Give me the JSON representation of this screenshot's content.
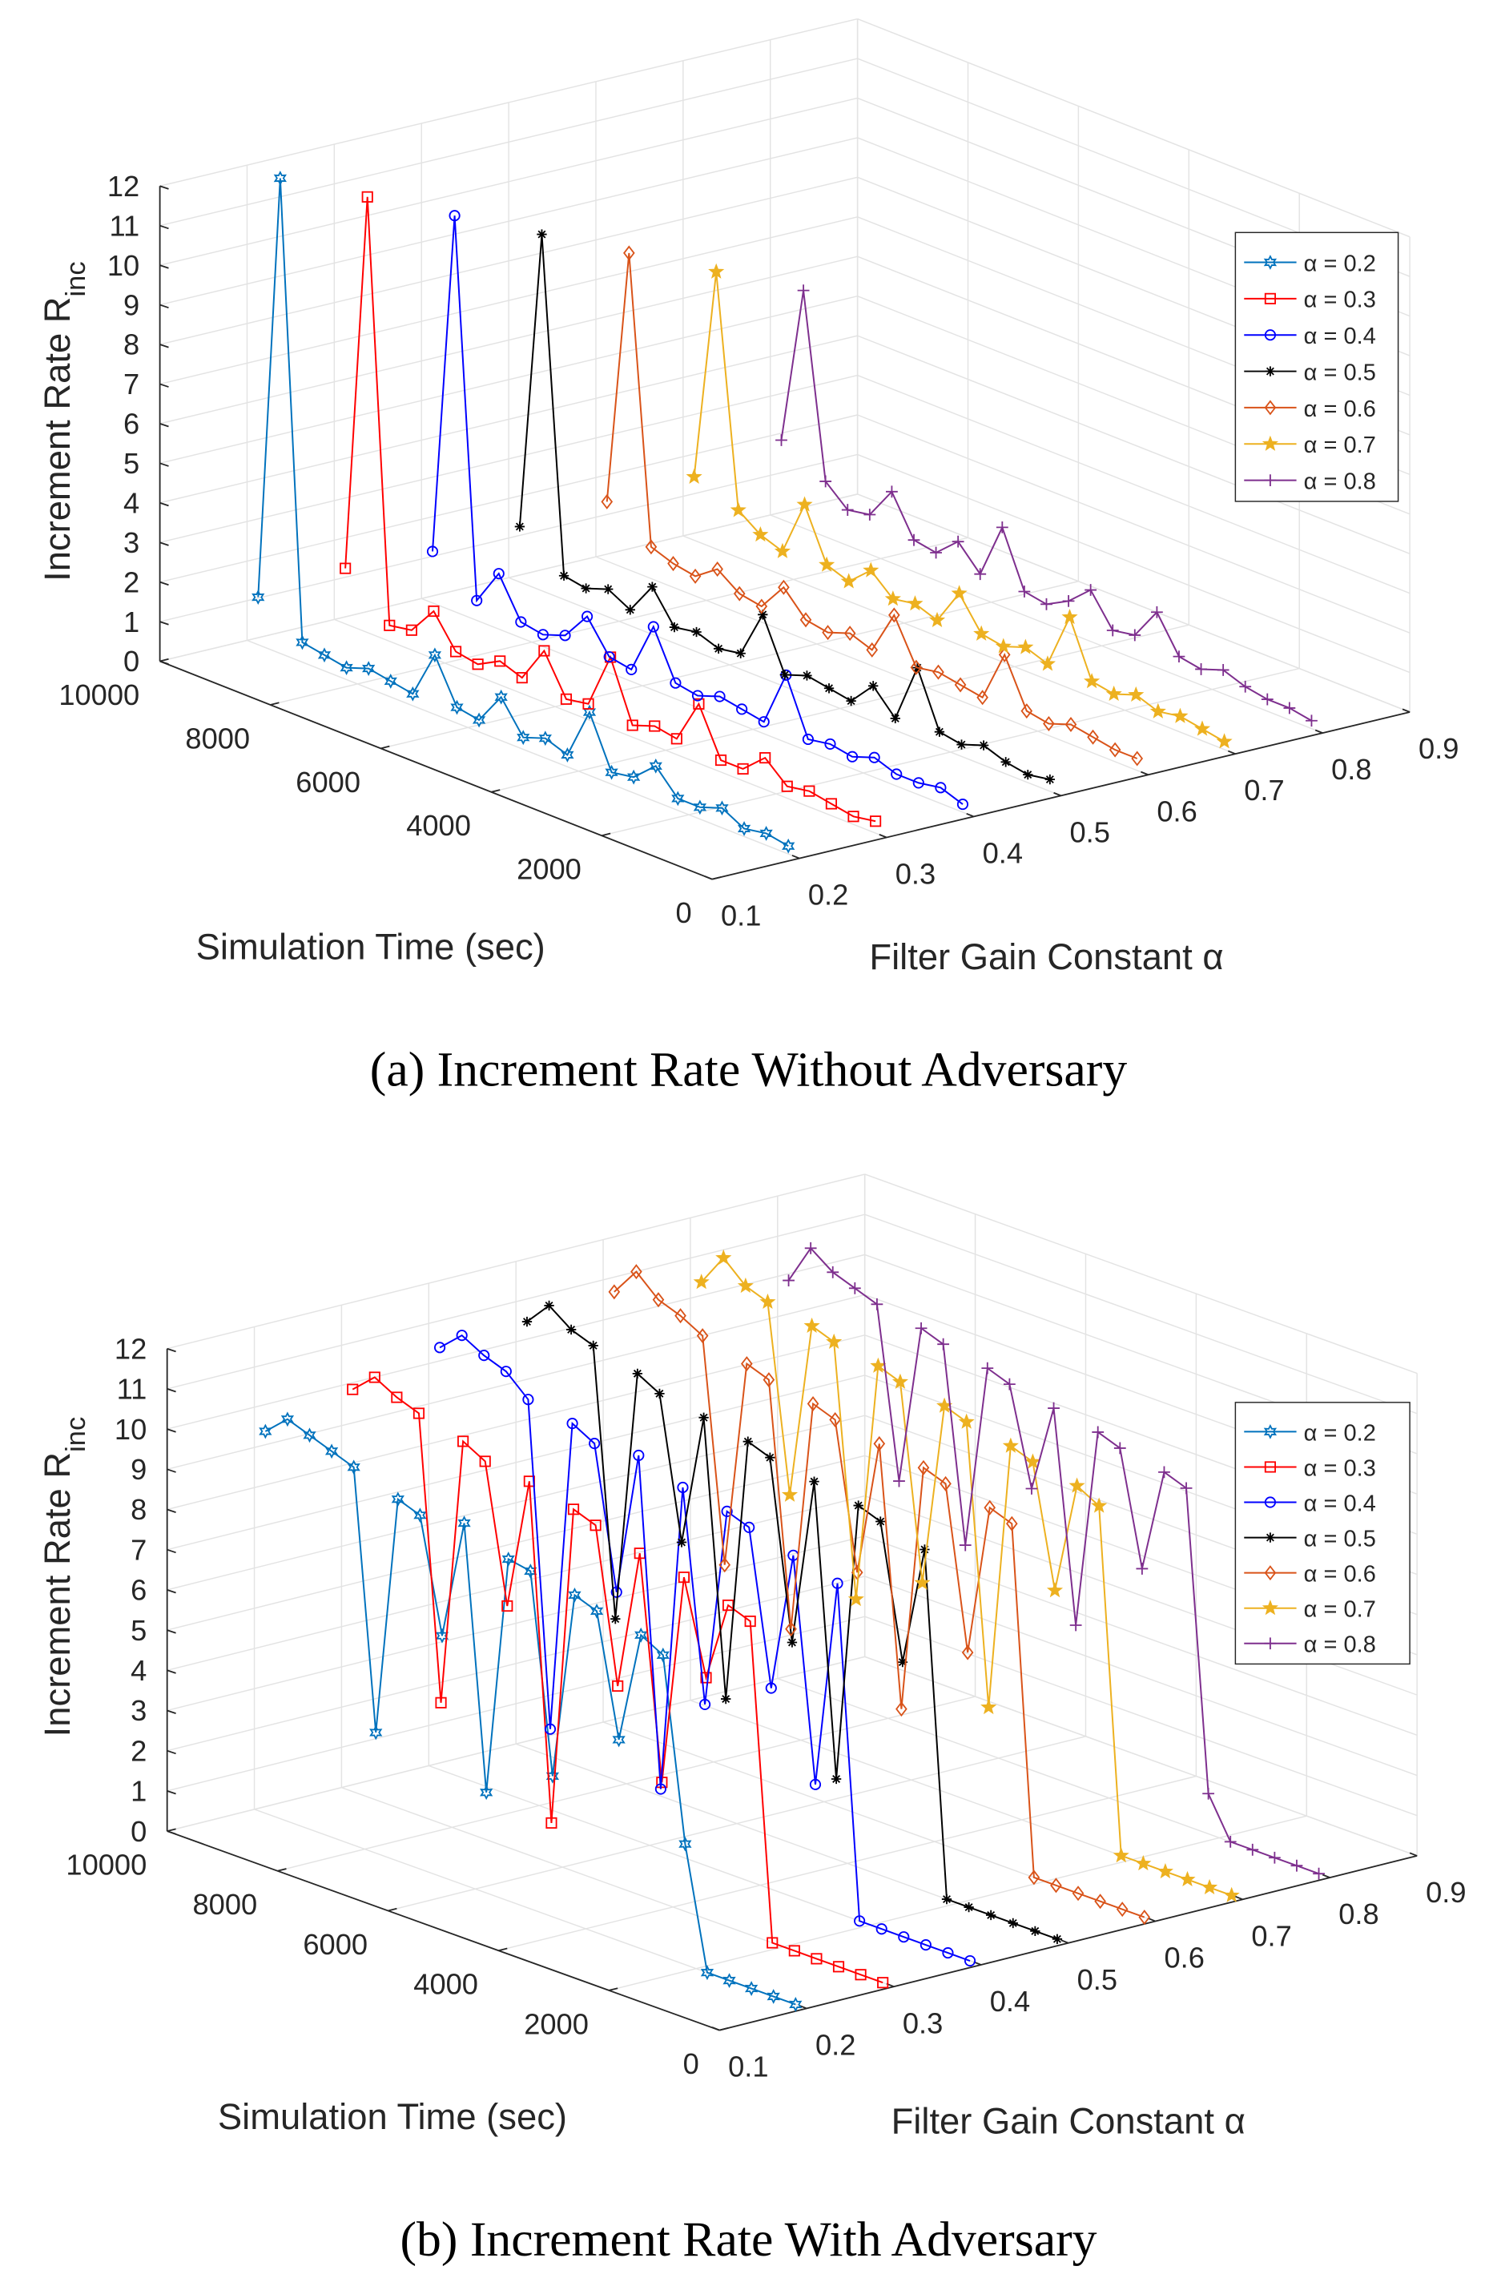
{
  "chart_data": [
    {
      "type": "line3d",
      "caption": "(a) Increment Rate Without Adversary",
      "zlabel": "Increment Rate R",
      "zlabel_sub": "inc",
      "xlabel": "Simulation Time (sec)",
      "alabel": "Filter Gain Constant α",
      "xlim": [
        0,
        10000
      ],
      "xticks": [
        0,
        2000,
        4000,
        6000,
        8000,
        10000
      ],
      "alim": [
        0.1,
        0.9
      ],
      "aticks": [
        0.1,
        0.2,
        0.3,
        0.4,
        0.5,
        0.6,
        0.7,
        0.8,
        0.9
      ],
      "zlim": [
        0,
        12
      ],
      "zticks": [
        0,
        1,
        2,
        3,
        4,
        5,
        6,
        7,
        8,
        9,
        10,
        11,
        12
      ],
      "grid": true,
      "legend": "upper right",
      "x": [
        9800,
        9400,
        9000,
        8600,
        8200,
        7800,
        7400,
        7000,
        6600,
        6200,
        5800,
        5400,
        5000,
        4600,
        4200,
        3800,
        3400,
        3000,
        2600,
        2200,
        1800,
        1400,
        1000,
        600,
        200
      ],
      "series": [
        {
          "name": "α = 0.2",
          "alpha": 0.2,
          "color": "#0072bd",
          "marker": "hexagram",
          "values": [
            1.2,
            12,
            0.5,
            0.4,
            0.3,
            0.5,
            0.4,
            0.3,
            1.5,
            0.4,
            0.3,
            1.1,
            0.3,
            0.5,
            0.3,
            1.6,
            0.3,
            0.4,
            0.9,
            0.3,
            0.3,
            0.5,
            0.2,
            0.3,
            0.2
          ]
        },
        {
          "name": "α = 0.3",
          "alpha": 0.3,
          "color": "#ff0000",
          "marker": "square",
          "values": [
            1.4,
            11,
            0.4,
            0.5,
            1.2,
            0.4,
            0.3,
            0.6,
            0.4,
            1.3,
            0.3,
            0.4,
            1.8,
            0.3,
            0.5,
            0.4,
            1.5,
            0.3,
            0.3,
            0.8,
            0.3,
            0.4,
            0.3,
            0.2,
            0.3
          ]
        },
        {
          "name": "α = 0.4",
          "alpha": 0.4,
          "color": "#0000ff",
          "marker": "circle",
          "values": [
            1.3,
            10,
            0.5,
            1.4,
            0.4,
            0.3,
            0.5,
            1.2,
            0.4,
            0.3,
            1.6,
            0.4,
            0.3,
            0.5,
            0.4,
            0.3,
            1.7,
            0.3,
            0.4,
            0.3,
            0.5,
            0.3,
            0.3,
            0.4,
            0.2
          ]
        },
        {
          "name": "α = 0.5",
          "alpha": 0.5,
          "color": "#000000",
          "marker": "asterisk",
          "values": [
            1.4,
            9,
            0.6,
            0.5,
            0.7,
            0.4,
            1.2,
            0.4,
            0.5,
            0.3,
            0.4,
            1.6,
            0.3,
            0.5,
            0.4,
            0.3,
            0.9,
            0.3,
            1.8,
            0.4,
            0.3,
            0.5,
            0.3,
            0.2,
            0.3
          ]
        },
        {
          "name": "α = 0.6",
          "alpha": 0.6,
          "color": "#d95319",
          "marker": "diamond",
          "values": [
            1.5,
            8,
            0.8,
            0.6,
            0.5,
            0.9,
            0.5,
            0.4,
            1.1,
            0.5,
            0.4,
            0.6,
            0.4,
            1.5,
            0.4,
            0.5,
            0.4,
            0.3,
            1.6,
            0.4,
            0.3,
            0.5,
            0.4,
            0.3,
            0.3
          ]
        },
        {
          "name": "α = 0.7",
          "alpha": 0.7,
          "color": "#edb120",
          "marker": "pentagram",
          "values": [
            1.6,
            7,
            1.2,
            0.8,
            0.6,
            2.0,
            0.7,
            0.5,
            1.0,
            0.5,
            0.6,
            0.4,
            1.3,
            0.5,
            0.4,
            0.6,
            0.4,
            1.8,
            0.4,
            0.3,
            0.5,
            0.3,
            0.4,
            0.3,
            0.2
          ]
        },
        {
          "name": "α = 0.8",
          "alpha": 0.8,
          "color": "#7e2f8e",
          "marker": "plus",
          "values": [
            2.0,
            6,
            1.4,
            0.9,
            1.0,
            1.8,
            0.8,
            0.7,
            1.2,
            0.6,
            2.0,
            0.6,
            0.5,
            0.8,
            1.3,
            0.5,
            0.6,
            1.4,
            0.5,
            0.4,
            0.6,
            0.4,
            0.3,
            0.3,
            0.2
          ]
        }
      ]
    },
    {
      "type": "line3d",
      "caption": "(b) Increment Rate With Adversary",
      "zlabel": "Increment Rate R",
      "zlabel_sub": "inc",
      "xlabel": "Simulation Time (sec)",
      "alabel": "Filter Gain Constant α",
      "xlim": [
        0,
        10000
      ],
      "xticks": [
        0,
        2000,
        4000,
        6000,
        8000,
        10000
      ],
      "alim": [
        0.1,
        0.9
      ],
      "aticks": [
        0.1,
        0.2,
        0.3,
        0.4,
        0.5,
        0.6,
        0.7,
        0.8,
        0.9
      ],
      "zlim": [
        0,
        12
      ],
      "zticks": [
        0,
        1,
        2,
        3,
        4,
        5,
        6,
        7,
        8,
        9,
        10,
        11,
        12
      ],
      "grid": true,
      "legend": "upper right",
      "x": [
        9800,
        9400,
        9000,
        8600,
        8200,
        7800,
        7400,
        7000,
        6600,
        6200,
        5800,
        5400,
        5000,
        4600,
        4200,
        3800,
        3400,
        3000,
        2600,
        2200,
        1800,
        1400,
        1000,
        600,
        200
      ],
      "series": [
        {
          "name": "α = 0.2",
          "alpha": 0.2,
          "color": "#0072bd",
          "marker": "hexagram",
          "values": [
            9.5,
            10,
            9.8,
            9.6,
            9.4,
            3,
            9,
            8.8,
            6,
            9,
            2.5,
            8.5,
            8.4,
            3.5,
            8.2,
            8,
            5,
            7.8,
            7.5,
            3,
            0,
            0,
            0,
            0,
            0
          ]
        },
        {
          "name": "α = 0.3",
          "alpha": 0.3,
          "color": "#ff0000",
          "marker": "square",
          "values": [
            10,
            10.5,
            10.2,
            10,
            3,
            9.7,
            9.4,
            6,
            9.3,
            1,
            9,
            8.8,
            5,
            8.5,
            3,
            8.3,
            6,
            8,
            7.8,
            0,
            0,
            0,
            0,
            0,
            0
          ]
        },
        {
          "name": "α = 0.4",
          "alpha": 0.4,
          "color": "#0000ff",
          "marker": "circle",
          "values": [
            10.5,
            11,
            10.7,
            10.5,
            10,
            2,
            9.8,
            9.5,
            6,
            9.6,
            1.5,
            9.2,
            4,
            9,
            8.8,
            5,
            8.5,
            3,
            8.2,
            0,
            0,
            0,
            0,
            0,
            0
          ]
        },
        {
          "name": "α = 0.5",
          "alpha": 0.5,
          "color": "#000000",
          "marker": "asterisk",
          "values": [
            10.6,
            11.2,
            10.8,
            10.6,
            4,
            10.3,
            10,
            6.5,
            9.8,
            3,
            9.6,
            9.4,
            5,
            9.2,
            2,
            9,
            8.8,
            5.5,
            8.5,
            0,
            0,
            0,
            0,
            0,
            0
          ]
        },
        {
          "name": "α = 0.6",
          "alpha": 0.6,
          "color": "#d95319",
          "marker": "diamond",
          "values": [
            10.8,
            11.5,
            11,
            10.8,
            10.5,
            5,
            10.2,
            10,
            4,
            9.8,
            9.6,
            6,
            9.4,
            3,
            9.2,
            9,
            5,
            8.8,
            8.6,
            0,
            0,
            0,
            0,
            0,
            0
          ]
        },
        {
          "name": "α = 0.7",
          "alpha": 0.7,
          "color": "#edb120",
          "marker": "pentagram",
          "values": [
            10.5,
            11.3,
            10.8,
            10.6,
            6,
            10.4,
            10.2,
            4,
            10,
            9.8,
            5,
            9.6,
            9.4,
            2.5,
            9.2,
            9,
            6,
            8.8,
            8.5,
            0,
            0,
            0,
            0,
            0,
            0
          ]
        },
        {
          "name": "α = 0.8",
          "alpha": 0.8,
          "color": "#7e2f8e",
          "marker": "plus",
          "values": [
            10,
            11,
            10.6,
            10.4,
            10.2,
            6,
            10,
            9.8,
            5,
            9.6,
            9.4,
            7,
            9.2,
            4,
            9,
            8.8,
            6,
            8.6,
            8.4,
            1,
            0,
            0,
            0,
            0,
            0
          ]
        }
      ]
    }
  ]
}
